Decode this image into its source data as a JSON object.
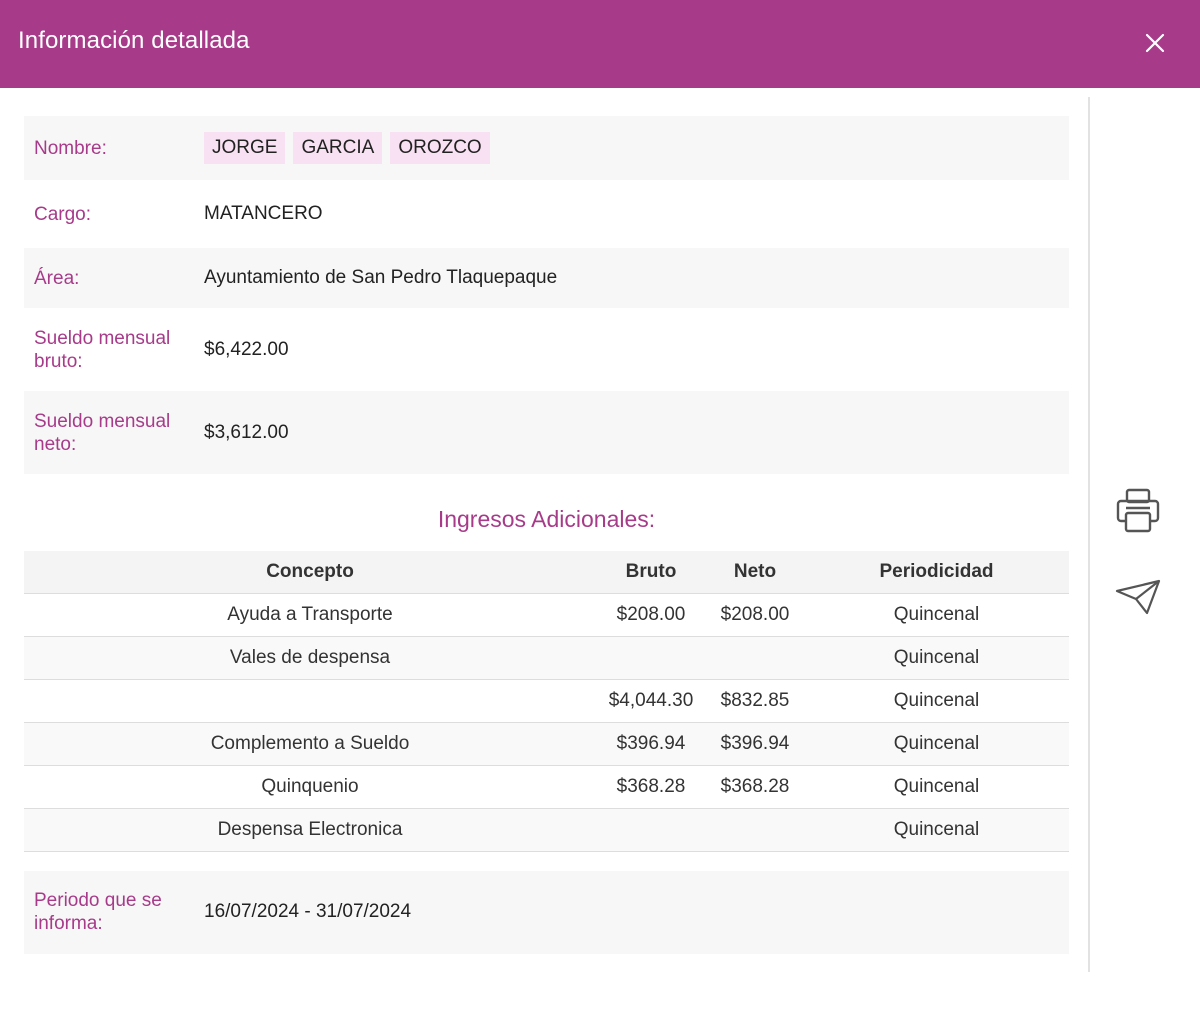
{
  "header": {
    "title": "Información detallada",
    "close_icon": "close-icon",
    "color": "#a73b8a"
  },
  "info": {
    "nombre_label": "Nombre:",
    "nombre_parts": [
      "JORGE",
      "GARCIA",
      "OROZCO"
    ],
    "cargo_label": "Cargo:",
    "cargo_value": "MATANCERO",
    "area_label": "Área:",
    "area_value": "Ayuntamiento de San Pedro Tlaquepaque",
    "sueldo_bruto_label_1": "Sueldo mensual",
    "sueldo_bruto_label_2": "bruto:",
    "sueldo_bruto_value": "$6,422.00",
    "sueldo_neto_label_1": "Sueldo mensual",
    "sueldo_neto_label_2": "neto:",
    "sueldo_neto_value": "$3,612.00"
  },
  "ingresos": {
    "title": "Ingresos Adicionales:",
    "columns": [
      "Concepto",
      "Bruto",
      "Neto",
      "Periodicidad"
    ],
    "rows": [
      {
        "concepto": "Ayuda a Transporte",
        "bruto": "$208.00",
        "neto": "$208.00",
        "periodicidad": "Quincenal"
      },
      {
        "concepto": "Vales de despensa",
        "bruto": "",
        "neto": "",
        "periodicidad": "Quincenal"
      },
      {
        "concepto": "",
        "bruto": "$4,044.30",
        "neto": "$832.85",
        "periodicidad": "Quincenal"
      },
      {
        "concepto": "Complemento a Sueldo",
        "bruto": "$396.94",
        "neto": "$396.94",
        "periodicidad": "Quincenal"
      },
      {
        "concepto": "Quinquenio",
        "bruto": "$368.28",
        "neto": "$368.28",
        "periodicidad": "Quincenal"
      },
      {
        "concepto": "Despensa Electronica",
        "bruto": "",
        "neto": "",
        "periodicidad": "Quincenal"
      }
    ]
  },
  "periodo": {
    "label_1": "Periodo que se",
    "label_2": "informa:",
    "value": "16/07/2024 - 31/07/2024"
  },
  "side_actions": {
    "print_icon": "printer-icon",
    "send_icon": "paper-plane-icon"
  }
}
